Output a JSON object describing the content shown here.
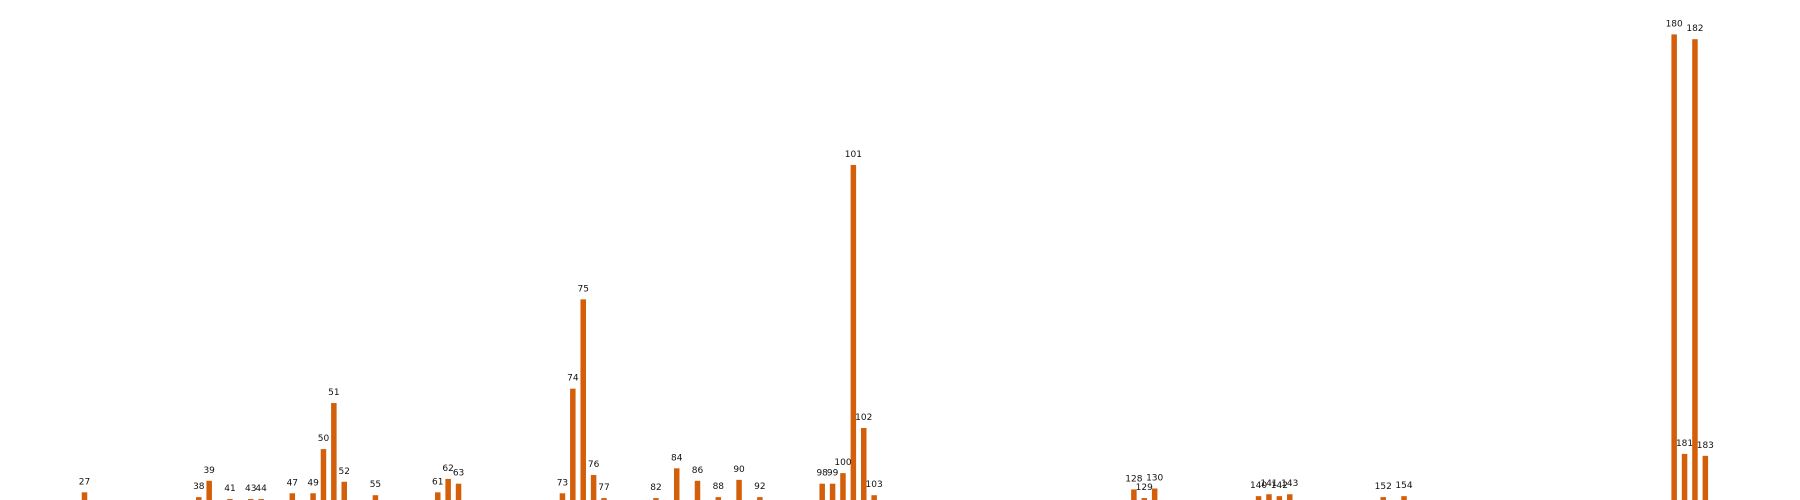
{
  "chart_data": {
    "type": "bar",
    "color": "#d35f0a",
    "x": [
      27,
      38,
      39,
      41,
      43,
      44,
      47,
      49,
      50,
      51,
      52,
      55,
      61,
      62,
      63,
      73,
      74,
      75,
      76,
      77,
      82,
      84,
      86,
      88,
      90,
      92,
      98,
      99,
      100,
      101,
      102,
      103,
      128,
      129,
      130,
      140,
      141,
      142,
      143,
      152,
      154,
      180,
      181,
      182,
      183
    ],
    "values": [
      8,
      3,
      20,
      1,
      1,
      1,
      7,
      7,
      53,
      101,
      19,
      5,
      8,
      22,
      17,
      7,
      116,
      209,
      26,
      2,
      2,
      33,
      20,
      3,
      21,
      3,
      17,
      17,
      28,
      349,
      75,
      5,
      11,
      2,
      12,
      4,
      6,
      4,
      6,
      3,
      4,
      485,
      48,
      480,
      46
    ],
    "ylim": [
      0,
      500
    ],
    "grid": false,
    "axes": false
  }
}
